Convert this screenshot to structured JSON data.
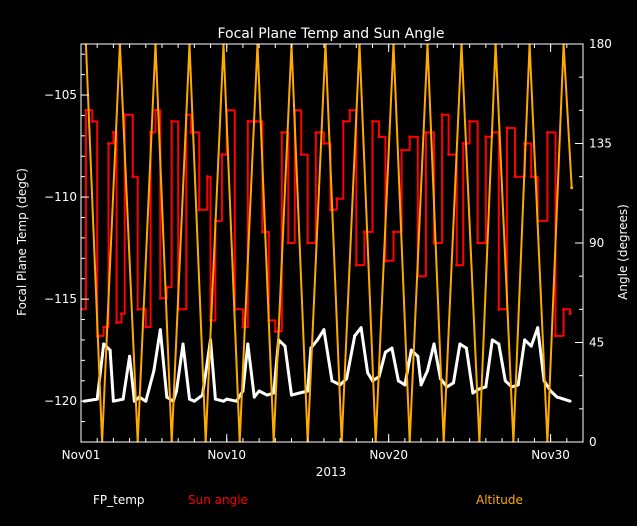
{
  "chart_data": {
    "type": "line",
    "title": "Focal Plane Temp and Sun Angle",
    "xlabel": "2013",
    "ylabel_left": "Focal Plane Temp (degC)",
    "ylabel_right": "Angle (degrees)",
    "x_unit": "day of November 2013",
    "xlim": [
      1,
      32
    ],
    "ylim_left": [
      -122.0,
      -102.5
    ],
    "ylim_right": [
      0,
      180
    ],
    "x_ticks": [
      {
        "x": 1,
        "label": "Nov01"
      },
      {
        "x": 10,
        "label": "Nov10"
      },
      {
        "x": 20,
        "label": "Nov20"
      },
      {
        "x": 30,
        "label": "Nov30"
      }
    ],
    "y_ticks_left": [
      -105,
      -110,
      -115,
      -120
    ],
    "y_ticks_right": [
      0,
      45,
      90,
      135,
      180
    ],
    "grid": false,
    "legend_position": "bottom",
    "series": [
      {
        "name": "FP_temp",
        "axis": "left",
        "color": "#ffffff",
        "x": [
          1.2,
          2.0,
          2.4,
          2.8,
          3.0,
          3.6,
          4.0,
          4.3,
          4.6,
          5.0,
          5.5,
          5.9,
          6.3,
          6.7,
          6.9,
          7.3,
          7.7,
          8.0,
          8.5,
          9.0,
          9.3,
          9.8,
          10.0,
          10.6,
          11.0,
          11.3,
          11.7,
          12.0,
          12.5,
          12.9,
          13.2,
          13.6,
          14.0,
          14.5,
          15.0,
          15.2,
          15.6,
          16.0,
          16.5,
          17.0,
          17.4,
          17.9,
          18.3,
          18.7,
          19.0,
          19.4,
          19.8,
          20.2,
          20.6,
          21.0,
          21.4,
          21.8,
          22.0,
          22.4,
          22.8,
          23.2,
          23.6,
          24.0,
          24.4,
          24.8,
          25.2,
          25.6,
          26.0,
          26.4,
          26.8,
          27.2,
          27.6,
          28.0,
          28.4,
          28.8,
          29.2,
          29.6,
          30.0,
          30.4,
          30.8,
          31.2
        ],
        "y": [
          -120.0,
          -119.9,
          -117.2,
          -117.5,
          -120.0,
          -119.9,
          -117.8,
          -120.0,
          -119.8,
          -120.0,
          -118.5,
          -116.5,
          -119.8,
          -120.0,
          -119.5,
          -117.2,
          -119.9,
          -120.0,
          -119.7,
          -117.0,
          -119.9,
          -120.0,
          -119.9,
          -120.0,
          -119.5,
          -117.2,
          -119.8,
          -119.5,
          -119.7,
          -119.6,
          -117.0,
          -117.3,
          -119.7,
          -119.6,
          -119.5,
          -117.4,
          -117.0,
          -116.5,
          -119.0,
          -119.2,
          -118.9,
          -116.8,
          -116.4,
          -118.6,
          -119.0,
          -118.8,
          -117.6,
          -117.4,
          -119.0,
          -119.2,
          -117.5,
          -117.8,
          -119.2,
          -118.5,
          -117.2,
          -118.9,
          -119.3,
          -119.1,
          -117.2,
          -117.4,
          -119.6,
          -119.4,
          -119.3,
          -117.0,
          -117.2,
          -119.0,
          -119.3,
          -119.2,
          -117.0,
          -117.3,
          -116.4,
          -119.0,
          -119.5,
          -119.8,
          -119.9,
          -120.0
        ]
      },
      {
        "name": "Sun angle",
        "axis": "right",
        "color": "#ff0000",
        "x": [
          1.0,
          1.3,
          1.7,
          2.0,
          2.4,
          2.7,
          3.0,
          3.2,
          3.5,
          3.7,
          4.2,
          4.5,
          5.0,
          5.3,
          5.6,
          5.9,
          6.3,
          6.6,
          7.0,
          7.5,
          7.8,
          8.3,
          8.8,
          9.0,
          9.3,
          9.7,
          10.0,
          10.5,
          11.0,
          11.3,
          11.8,
          12.2,
          12.6,
          13.0,
          13.4,
          13.8,
          14.2,
          14.6,
          15.0,
          15.5,
          16.0,
          16.4,
          16.8,
          17.2,
          17.6,
          18.0,
          18.5,
          19.0,
          19.4,
          19.8,
          20.3,
          20.8,
          21.3,
          21.8,
          22.3,
          22.8,
          23.3,
          23.7,
          24.2,
          24.6,
          25.0,
          25.5,
          26.0,
          26.4,
          26.8,
          27.3,
          27.8,
          28.4,
          28.8,
          29.2,
          29.8,
          30.3,
          30.8,
          31.2
        ],
        "y": [
          60,
          150,
          145,
          48,
          52,
          135,
          140,
          54,
          58,
          148,
          120,
          60,
          52,
          140,
          150,
          65,
          70,
          145,
          60,
          148,
          140,
          105,
          120,
          55,
          100,
          130,
          150,
          60,
          52,
          145,
          145,
          95,
          55,
          50,
          140,
          90,
          150,
          130,
          90,
          140,
          135,
          105,
          110,
          145,
          150,
          80,
          95,
          145,
          138,
          82,
          95,
          132,
          138,
          75,
          140,
          90,
          148,
          130,
          80,
          135,
          145,
          90,
          138,
          140,
          60,
          142,
          120,
          135,
          120,
          100,
          140,
          48,
          60,
          58
        ]
      },
      {
        "name": "Altitude",
        "axis": "right",
        "color": "#ffaa00",
        "x": [
          1.3,
          2.3,
          3.4,
          4.5,
          5.6,
          6.6,
          7.7,
          8.7,
          9.8,
          10.8,
          11.9,
          12.9,
          14.0,
          15.0,
          16.1,
          17.1,
          18.2,
          19.2,
          20.3,
          21.3,
          22.4,
          23.4,
          24.5,
          25.6,
          26.6,
          27.7,
          28.7,
          29.8,
          30.8,
          31.3
        ],
        "y": [
          180,
          0,
          180,
          0,
          180,
          0,
          180,
          0,
          180,
          0,
          180,
          0,
          180,
          0,
          180,
          0,
          180,
          0,
          180,
          0,
          180,
          0,
          180,
          0,
          180,
          0,
          180,
          0,
          180,
          115
        ]
      }
    ]
  }
}
